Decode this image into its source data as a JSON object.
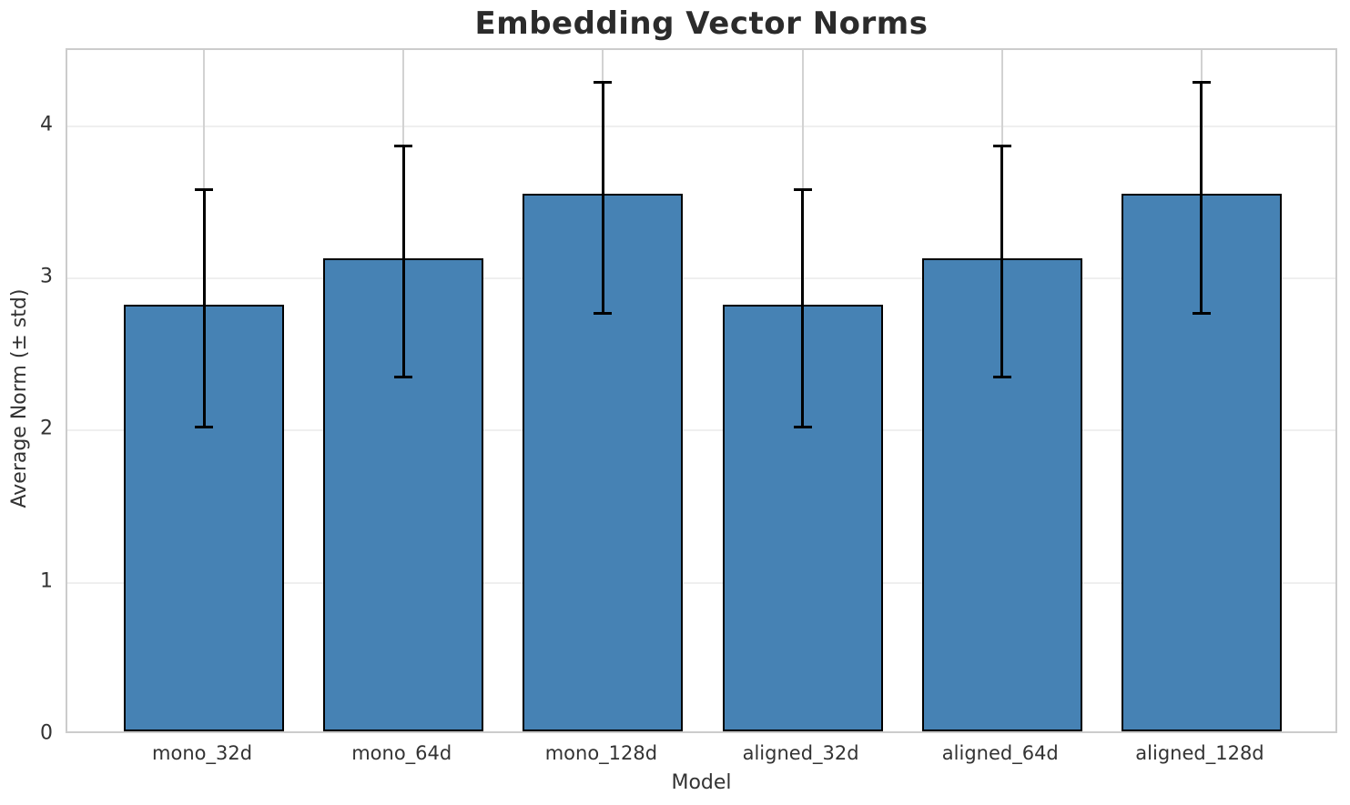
{
  "chart_data": {
    "type": "bar",
    "title": "Embedding Vector Norms",
    "xlabel": "Model",
    "ylabel": "Average Norm (± std)",
    "categories": [
      "mono_32d",
      "mono_64d",
      "mono_128d",
      "aligned_32d",
      "aligned_64d",
      "aligned_128d"
    ],
    "values": [
      2.8,
      3.11,
      3.53,
      2.8,
      3.11,
      3.53
    ],
    "errors": [
      0.78,
      0.76,
      0.76,
      0.78,
      0.76,
      0.76
    ],
    "yticks": [
      0,
      1,
      2,
      3,
      4
    ],
    "ylim": [
      0,
      4.5
    ],
    "grid": true,
    "legend": "none",
    "bar_color": "#4682B4",
    "bar_edge_color": "#000000",
    "error_color": "#000000",
    "gridline_color_horizontal": "#efefef",
    "gridline_color_vertical": "#d2d2d2",
    "spine_color": "#cccccc",
    "title_color": "#2b2b2b",
    "text_color": "#333333"
  }
}
